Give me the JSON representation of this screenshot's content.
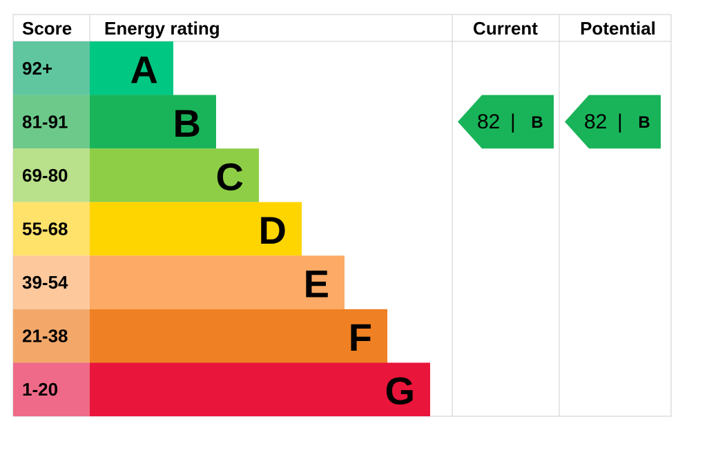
{
  "header": {
    "score": "Score",
    "energy_rating": "Energy rating",
    "current": "Current",
    "potential": "Potential"
  },
  "bands": [
    {
      "score": "92+",
      "letter": "A",
      "color": "#00c781",
      "score_color": "#5fc6a0"
    },
    {
      "score": "81-91",
      "letter": "B",
      "color": "#19b459",
      "score_color": "#6dc98a"
    },
    {
      "score": "69-80",
      "letter": "C",
      "color": "#8dce46",
      "score_color": "#b9e08a"
    },
    {
      "score": "55-68",
      "letter": "D",
      "color": "#ffd500",
      "score_color": "#ffe26a"
    },
    {
      "score": "39-54",
      "letter": "E",
      "color": "#fcaa65",
      "score_color": "#fdc89c"
    },
    {
      "score": "21-38",
      "letter": "F",
      "color": "#ef8023",
      "score_color": "#f3a86a"
    },
    {
      "score": "1-20",
      "letter": "G",
      "color": "#e9153b",
      "score_color": "#ef6a88"
    }
  ],
  "current": {
    "value": 82,
    "separator": "|",
    "letter": "B"
  },
  "potential": {
    "value": 82,
    "separator": "|",
    "letter": "B"
  }
}
